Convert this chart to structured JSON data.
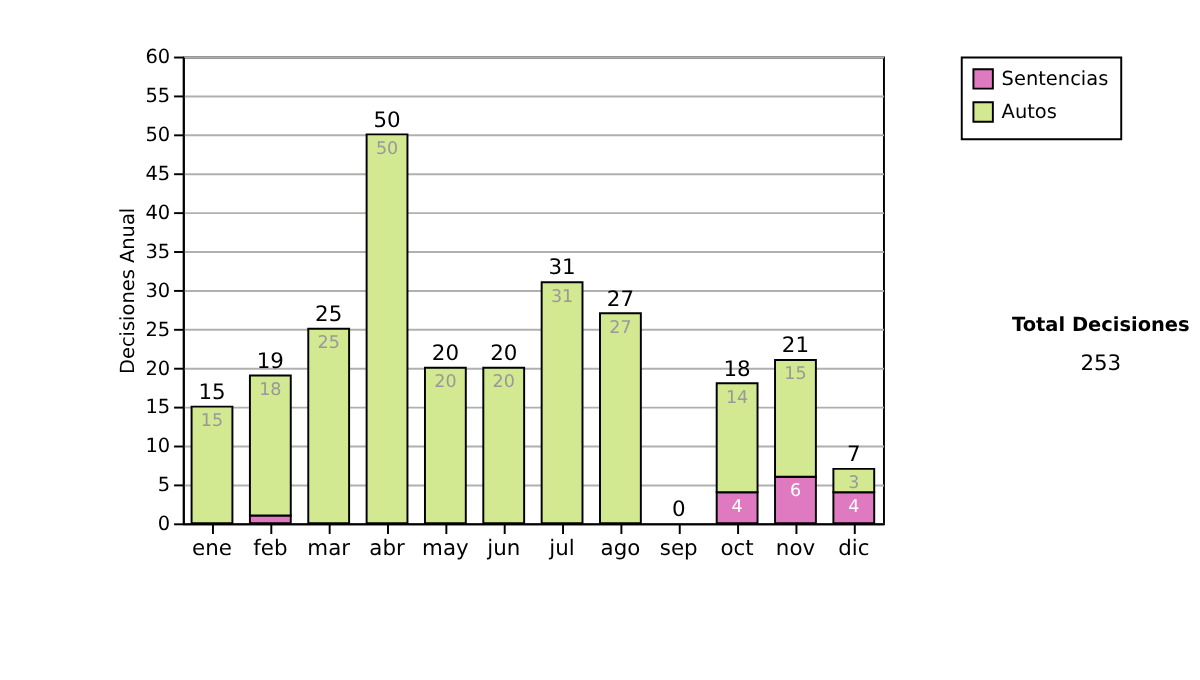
{
  "chart_data": {
    "type": "bar",
    "stacked": true,
    "ylabel": "Decisiones Anual",
    "categories": [
      "ene",
      "feb",
      "mar",
      "abr",
      "may",
      "jun",
      "jul",
      "ago",
      "sep",
      "oct",
      "nov",
      "dic"
    ],
    "series": [
      {
        "name": "Sentencias",
        "color": "#e07ac0",
        "values": [
          0,
          1,
          0,
          0,
          0,
          0,
          0,
          0,
          0,
          4,
          6,
          4
        ],
        "value_labels": [
          null,
          null,
          null,
          null,
          null,
          null,
          null,
          null,
          null,
          "4",
          "6",
          "4"
        ]
      },
      {
        "name": "Autos",
        "color": "#d2e891",
        "values": [
          15,
          18,
          25,
          50,
          20,
          20,
          31,
          27,
          0,
          14,
          15,
          3
        ],
        "value_labels": [
          "15",
          "18",
          "25",
          "50",
          "20",
          "20",
          "31",
          "27",
          null,
          "14",
          "15",
          "3"
        ]
      }
    ],
    "totals": [
      "15",
      "19",
      "25",
      "50",
      "20",
      "20",
      "31",
      "27",
      "0",
      "18",
      "21",
      "7"
    ],
    "ylim": [
      0,
      60
    ],
    "yticks": [
      0,
      5,
      10,
      15,
      20,
      25,
      30,
      35,
      40,
      45,
      50,
      55,
      60
    ],
    "grid": "y",
    "legend": "right",
    "annotations": [
      "Total Decisiones",
      "253"
    ]
  }
}
